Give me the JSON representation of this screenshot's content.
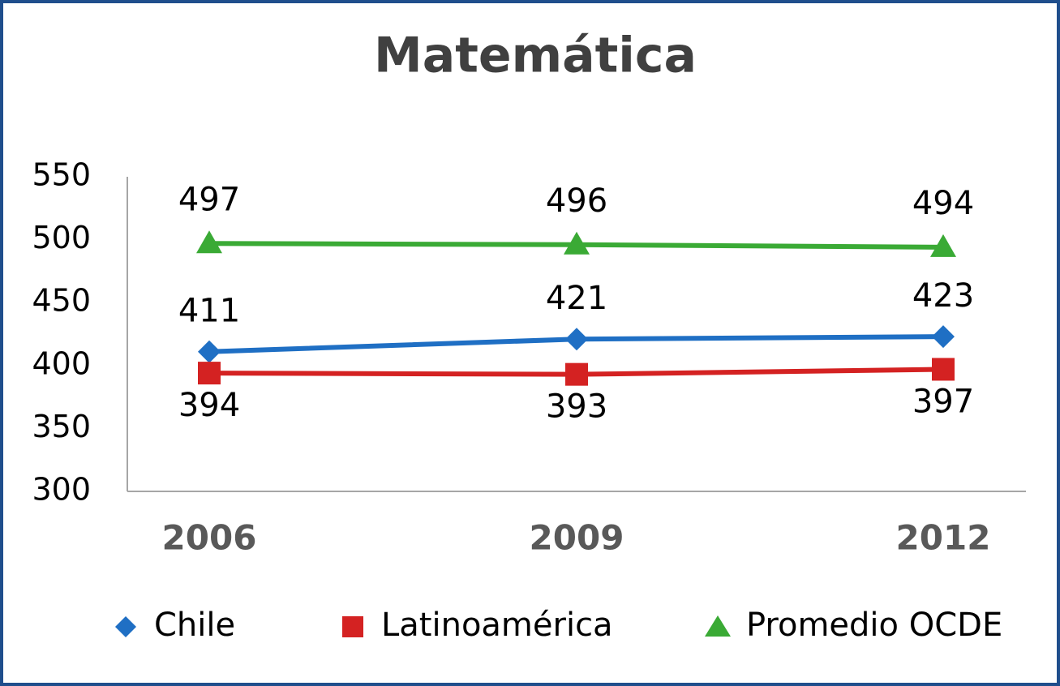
{
  "chart_data": {
    "type": "line",
    "title": "Matemática",
    "categories": [
      "2006",
      "2009",
      "2012"
    ],
    "series": [
      {
        "name": "Chile",
        "color": "#1f6fc4",
        "marker": "diamond",
        "values": [
          411,
          421,
          423
        ]
      },
      {
        "name": "Latinoamérica",
        "color": "#d42222",
        "marker": "square",
        "values": [
          394,
          393,
          397
        ]
      },
      {
        "name": "Promedio OCDE",
        "color": "#3aaa35",
        "marker": "triangle",
        "values": [
          497,
          496,
          494
        ]
      }
    ],
    "ylim": [
      300,
      550
    ],
    "yticks": [
      300,
      350,
      400,
      450,
      500,
      550
    ],
    "grid": false,
    "legend": "bottom"
  }
}
